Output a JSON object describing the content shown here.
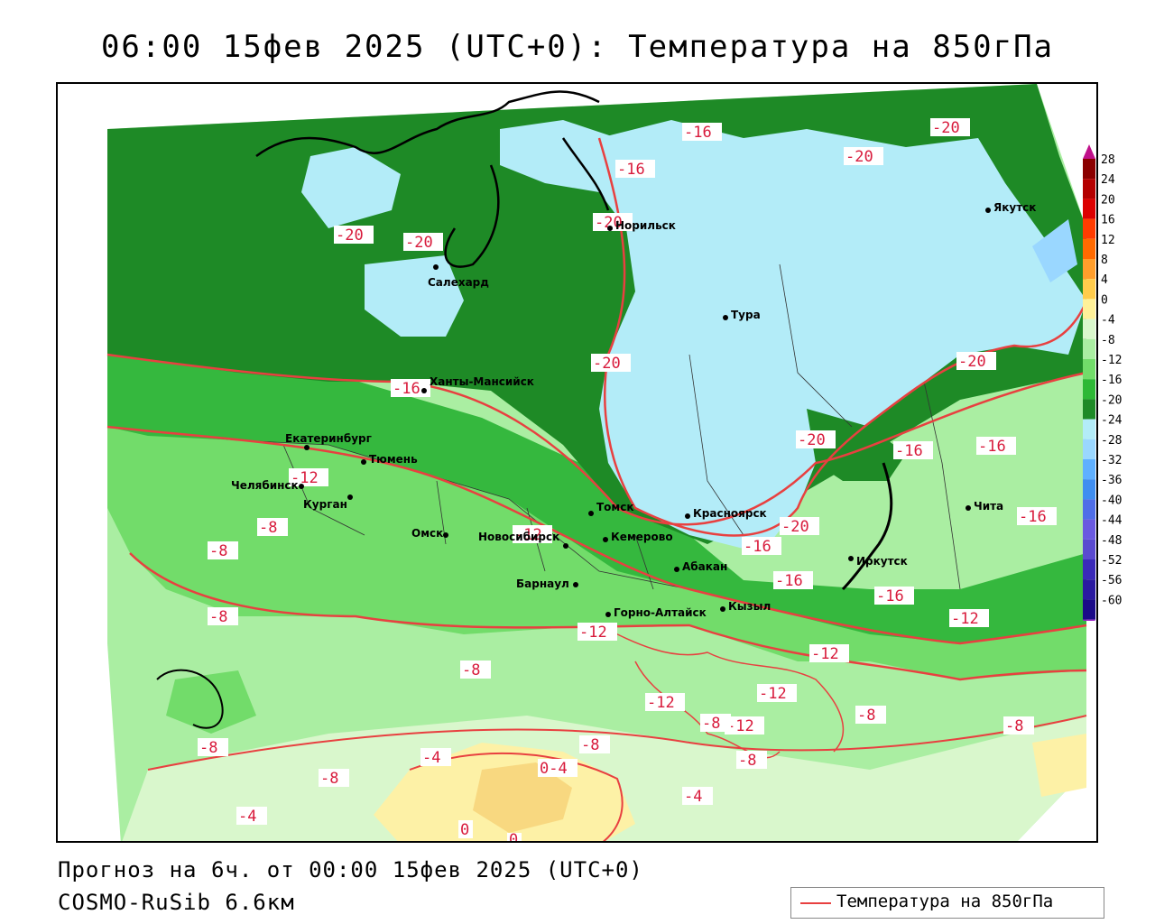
{
  "title": "06:00 15фев 2025 (UTC+0): Температура на 850гПа",
  "forecast_line": "Прогноз на 6ч. от 00:00 15фев 2025 (UTC+0)",
  "model_line": "COSMO-RuSib 6.6км",
  "legend_label": "Температура на 850гПа",
  "colors": {
    "contour": "#e84040",
    "band_minus12_minus16": "#1e9a2a",
    "band_minus16_minus20": "#2e7d32",
    "band_minus20_minus24": "#b3ecf8",
    "band_minus8_minus12": "#72dc6a",
    "band_minus4_minus8": "#aaeea2",
    "band_0_minus4": "#d9f7cc",
    "band_0_4": "#fdf1a6",
    "band_4_8": "#f8d880"
  },
  "scale": {
    "ticks": [
      "28",
      "24",
      "20",
      "16",
      "12",
      "8",
      "4",
      "0",
      "-4",
      "-8",
      "-12",
      "-16",
      "-20",
      "-24",
      "-28",
      "-32",
      "-36",
      "-40",
      "-44",
      "-48",
      "-52",
      "-56",
      "-60"
    ],
    "colors": [
      "#8b0000",
      "#b40000",
      "#dc0000",
      "#ff3c00",
      "#ff6a00",
      "#ff9e2c",
      "#ffcc4c",
      "#fff199",
      "#d9f7cc",
      "#aaeea2",
      "#72dc6a",
      "#2eb836",
      "#1e8a26",
      "#b3ecf8",
      "#9ad7ff",
      "#5fb0ff",
      "#3f8ef0",
      "#4f6ee8",
      "#6a5ae0",
      "#5a4ad0",
      "#3a2ab8",
      "#2a1aa0",
      "#1a0a88"
    ]
  },
  "cities": [
    {
      "name": "Якутск"
    },
    {
      "name": "Норильск"
    },
    {
      "name": "Салехард"
    },
    {
      "name": "Тура"
    },
    {
      "name": "Ханты-Мансийск"
    },
    {
      "name": "Екатеринбург"
    },
    {
      "name": "Тюмень"
    },
    {
      "name": "Челябинск"
    },
    {
      "name": "Курган"
    },
    {
      "name": "Омск"
    },
    {
      "name": "Новосибирск"
    },
    {
      "name": "Томск"
    },
    {
      "name": "Кемерово"
    },
    {
      "name": "Красноярск"
    },
    {
      "name": "Барнаул"
    },
    {
      "name": "Абакан"
    },
    {
      "name": "Горно-Алтайск"
    },
    {
      "name": "Кызыл"
    },
    {
      "name": "Иркутск"
    },
    {
      "name": "Чита"
    }
  ],
  "isotherm_labels": [
    "-16",
    "-20",
    "-16",
    "-20",
    "-20",
    "-20",
    "-20",
    "-20",
    "-16",
    "-20",
    "-20",
    "-16",
    "-16",
    "-12",
    "-8",
    "-8",
    "-12",
    "-16",
    "-20",
    "-16",
    "-16",
    "-16",
    "-12",
    "-12",
    "-8",
    "-12",
    "-12",
    "-12",
    "-8",
    "-12",
    "-8",
    "-8",
    "-8",
    "-8",
    "-8",
    "-8",
    "-4",
    "0-4",
    "-4",
    "-4",
    "0",
    "0",
    "-8"
  ]
}
